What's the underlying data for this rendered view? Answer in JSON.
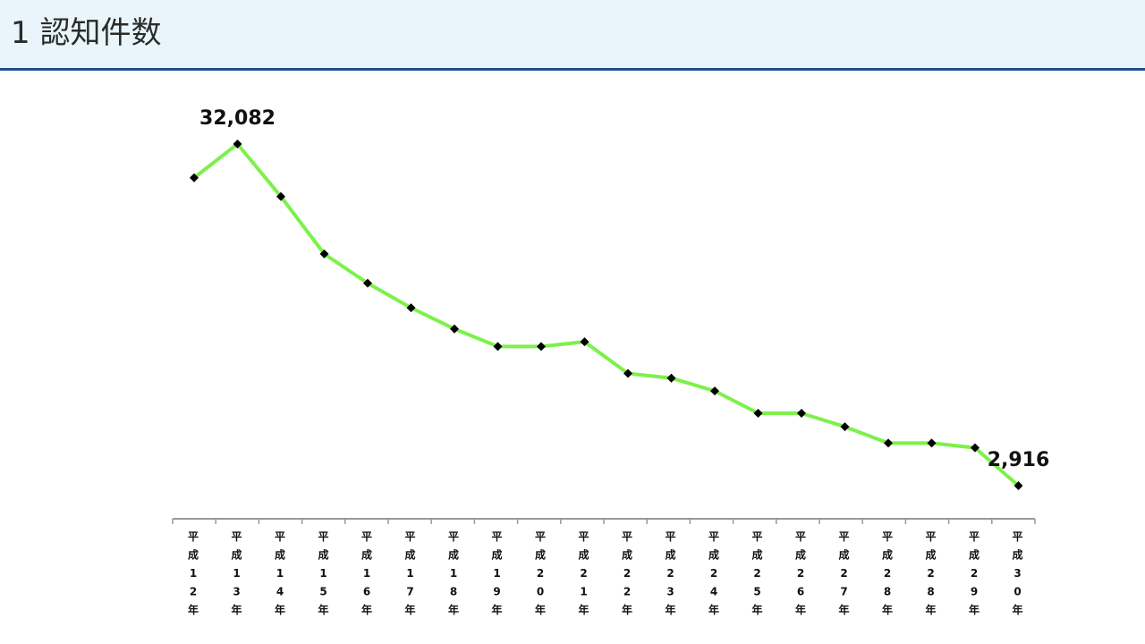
{
  "header": {
    "title": "1 認知件数"
  },
  "colors": {
    "header_bg": "#e9f5fb",
    "header_border": "#1f4e8c",
    "line": "#7cf14a",
    "marker": "#000000",
    "axis": "#999999"
  },
  "chart_data": {
    "type": "line",
    "title": "",
    "xlabel": "",
    "ylabel": "",
    "categories": [
      "平成12年",
      "平成13年",
      "平成14年",
      "平成15年",
      "平成16年",
      "平成17年",
      "平成18年",
      "平成19年",
      "平成20年",
      "平成21年",
      "平成22年",
      "平成23年",
      "平成24年",
      "平成25年",
      "平成26年",
      "平成27年",
      "平成28年",
      "平成28年",
      "平成29年",
      "平成30年"
    ],
    "values": [
      29200,
      32082,
      27600,
      22700,
      20200,
      18100,
      16300,
      14800,
      14800,
      15200,
      12500,
      12100,
      11000,
      9100,
      9100,
      7950,
      6550,
      6550,
      6150,
      2916
    ],
    "data_labels": [
      {
        "index": 1,
        "text": "32,082"
      },
      {
        "index": 19,
        "text": "2,916"
      }
    ],
    "ylim": [
      0,
      33000
    ],
    "grid": false,
    "legend": "none",
    "marker": "diamond"
  }
}
